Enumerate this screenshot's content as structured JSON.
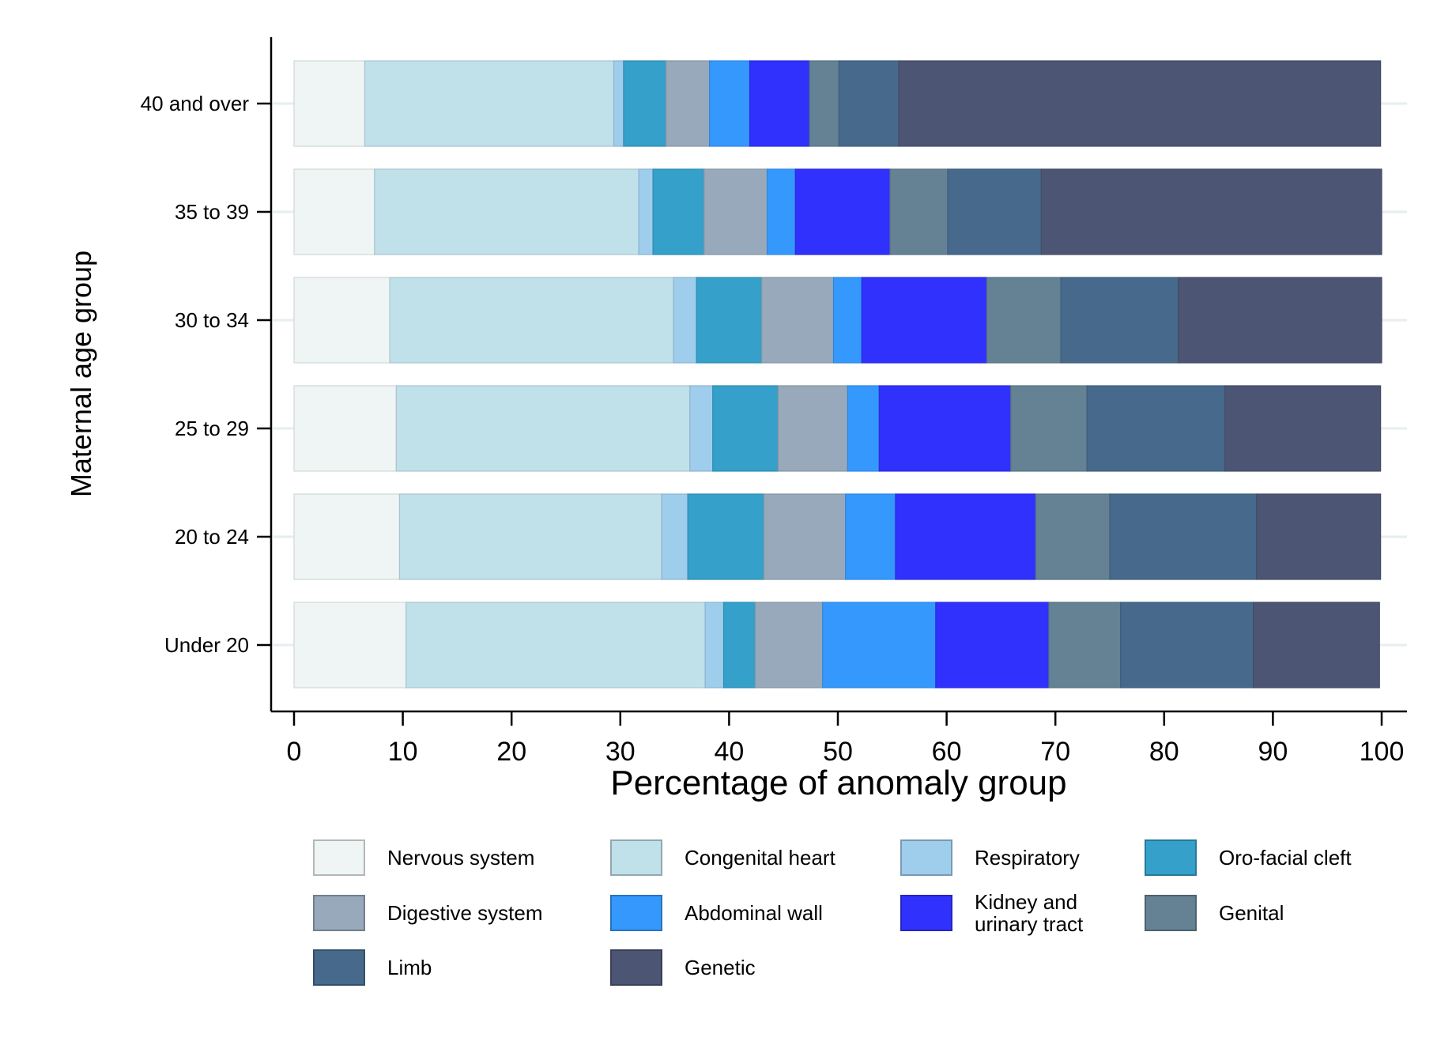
{
  "chart_data": {
    "type": "bar",
    "orientation": "horizontal",
    "stacked": true,
    "xlabel": "Percentage of anomaly group",
    "ylabel": "Maternal age group",
    "xlim": [
      0,
      100
    ],
    "xticks": [
      0,
      10,
      20,
      30,
      40,
      50,
      60,
      70,
      80,
      90,
      100
    ],
    "grid": true,
    "legend_position": "bottom",
    "categories": [
      "40 and over",
      "35 to 39",
      "30 to 34",
      "25 to 29",
      "20 to 24",
      "Under 20"
    ],
    "series": [
      {
        "name": "Nervous system",
        "color": "#eef5f4",
        "values": [
          6.5,
          7.4,
          8.8,
          9.4,
          9.7,
          10.3
        ]
      },
      {
        "name": "Congenital heart",
        "color": "#c0e0ea",
        "values": [
          22.9,
          24.3,
          26.1,
          27.0,
          24.1,
          27.5
        ]
      },
      {
        "name": "Respiratory",
        "color": "#9fcdec",
        "values": [
          0.9,
          1.3,
          2.1,
          2.1,
          2.4,
          1.7
        ]
      },
      {
        "name": "Oro-facial cleft",
        "color": "#35a0c9",
        "values": [
          3.9,
          4.7,
          6.0,
          6.0,
          7.0,
          2.9
        ]
      },
      {
        "name": "Digestive system",
        "color": "#97a9ba",
        "values": [
          4.0,
          5.8,
          6.6,
          6.4,
          7.5,
          6.2
        ]
      },
      {
        "name": "Abdominal wall",
        "color": "#3598fd",
        "values": [
          3.7,
          2.6,
          2.6,
          2.9,
          4.6,
          10.4
        ]
      },
      {
        "name": "Kidney and urinary tract",
        "color": "#3131fe",
        "values": [
          5.5,
          8.7,
          11.5,
          12.1,
          12.9,
          10.4
        ]
      },
      {
        "name": "Genital",
        "color": "#648294",
        "values": [
          2.7,
          5.3,
          6.8,
          7.0,
          6.8,
          6.6
        ]
      },
      {
        "name": "Limb",
        "color": "#476a8c",
        "values": [
          5.5,
          8.6,
          10.8,
          12.7,
          13.5,
          12.2
        ]
      },
      {
        "name": "Genetic",
        "color": "#4c5573",
        "values": [
          44.3,
          31.3,
          18.7,
          14.3,
          11.4,
          11.6
        ]
      }
    ]
  }
}
